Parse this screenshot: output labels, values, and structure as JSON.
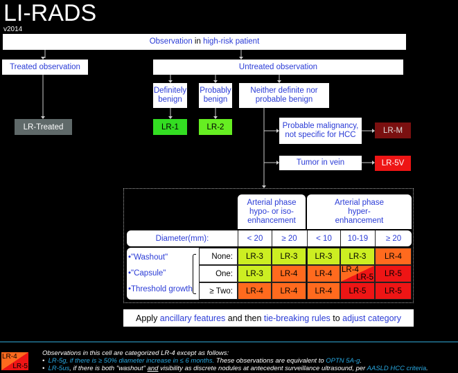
{
  "title": "LI-RADS",
  "version": "v2014",
  "top": {
    "a": "Observation",
    "b": " in ",
    "c": "high-risk patient"
  },
  "treated": "Treated observation",
  "untreated": "Untreated observation",
  "def_benign": "Definitely benign",
  "prob_benign": "Probably benign",
  "neither": "Neither definite nor probable benign",
  "prob_malig": "Probable malignancy, not specific for HCC",
  "tumor_vein": "Tumor in vein",
  "cats": {
    "treated": "LR-Treated",
    "lr1": "LR-1",
    "lr2": "LR-2",
    "lrm": "LR-M",
    "lr5v": "LR-5V"
  },
  "colors": {
    "treated": "#5f6969",
    "lr1": "#33dd22",
    "lr2": "#66ee22",
    "lrm": "#7a1010",
    "lr5v": "#ee1515"
  },
  "table": {
    "headers": [
      "Arterial phase hypo- or iso-enhancement",
      "Arterial phase hyper-enhancement"
    ],
    "diameter_label": "Diameter(mm):",
    "diameters": [
      "< 20",
      "≥ 20",
      "< 10",
      "10-19",
      "≥ 20"
    ],
    "features": [
      "•\"Washout\"",
      "•\"Capsule\"",
      "•Threshold growth"
    ],
    "rows": [
      {
        "label": "None:",
        "cells": [
          "LR-3",
          "LR-3",
          "LR-3",
          "LR-3",
          "LR-4"
        ]
      },
      {
        "label": "One:",
        "cells": [
          "LR-3",
          "LR-4",
          "LR-4",
          "LR-4/LR-5",
          "LR-5"
        ]
      },
      {
        "label": "≥ Two:",
        "cells": [
          "LR-4",
          "LR-4",
          "LR-4",
          "LR-5",
          "LR-5"
        ]
      }
    ],
    "split": [
      "LR-4",
      "LR-5"
    ]
  },
  "bottom": {
    "a": "Apply ",
    "b": "ancillary features",
    "c": " and then ",
    "d": "tie-breaking rules",
    "e": " to ",
    "f": "adjust category"
  },
  "footnote": {
    "intro": "Observations in this cell are categorized LR-4 except as follows:",
    "b1a": "LR-5g",
    "b1b": ", if there is ≥ 50% diameter increase in ≤ 6 months.",
    "b1c": " These observations are equivalent to ",
    "b1d": "OPTN 5A-g",
    "b2a": "LR-5us",
    "b2b": ", if there is both \"washout\" ",
    "b2c": "and",
    "b2d": " visibility as discrete nodules at antecedent surveillance ultrasound, per ",
    "b2e": "AASLD HCC criteria",
    "bullet": "•"
  }
}
